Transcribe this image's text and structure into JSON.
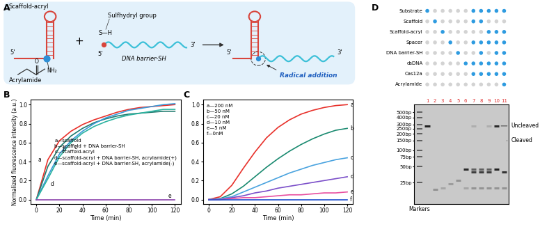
{
  "diagram": {
    "panel": "A",
    "scaffold_label": "Scaffold-acryl",
    "acrylamide_label": "Acrylamide",
    "carbonyl": "O",
    "amine": "NH₂",
    "plus": "+",
    "thiol_label": "Sulfhydryl group",
    "thiol": "S—H",
    "barrier_label": "DNA barrier-SH",
    "five_prime": "5'",
    "three_prime": "3'",
    "reaction_label": "Radical addition"
  },
  "chart_data": [
    {
      "panel": "B",
      "type": "line",
      "x": [
        0,
        10,
        20,
        30,
        40,
        50,
        60,
        70,
        80,
        90,
        100,
        110,
        120
      ],
      "xlim": [
        -5,
        125
      ],
      "xticks": [
        0,
        20,
        40,
        60,
        80,
        100,
        120
      ],
      "ylim": [
        -0.05,
        1.05
      ],
      "yticks": [
        {
          "value": 0,
          "label": "0.0"
        },
        0.2,
        0.4,
        0.6,
        0.8,
        {
          "value": 1,
          "label": "1.0"
        }
      ],
      "x_label": "Time (min)",
      "y_label": "Normalized fluorescence intensity (a.u.)",
      "legend": "center right",
      "series": [
        {
          "name": "a—scaffold",
          "color": "#e8302a",
          "values": [
            0,
            0.42,
            0.62,
            0.72,
            0.79,
            0.84,
            0.88,
            0.92,
            0.95,
            0.97,
            0.98,
            0.99,
            1.0
          ]
        },
        {
          "name": "b—scaffold + DNA barrier-SH",
          "color": "#1f7a6e",
          "values": [
            0,
            0.35,
            0.55,
            0.67,
            0.75,
            0.81,
            0.85,
            0.88,
            0.9,
            0.91,
            0.92,
            0.93,
            0.93
          ]
        },
        {
          "name": "c—scaffold-acryl",
          "color": "#3a9ad9",
          "values": [
            0,
            0.25,
            0.48,
            0.62,
            0.72,
            0.8,
            0.86,
            0.9,
            0.94,
            0.96,
            0.98,
            1.0,
            1.01
          ]
        },
        {
          "name": "d—scaffold-acryl + DNA barrier-SH, acrylamide(+)",
          "color": "#2bb3a0",
          "values": [
            0,
            0.22,
            0.45,
            0.6,
            0.7,
            0.77,
            0.82,
            0.86,
            0.89,
            0.91,
            0.93,
            0.95,
            0.95
          ]
        },
        {
          "name": "e—scaffold-acryl + DNA barrier-SH, acrylamide(-)",
          "color": "#8e44ad",
          "values": [
            0,
            0,
            0,
            0,
            0,
            0,
            0,
            0,
            0,
            0,
            0,
            0,
            0
          ]
        }
      ]
    },
    {
      "panel": "C",
      "type": "line",
      "x": [
        0,
        10,
        20,
        30,
        40,
        50,
        60,
        70,
        80,
        90,
        100,
        110,
        120
      ],
      "xlim": [
        -5,
        125
      ],
      "xticks": [
        0,
        20,
        40,
        60,
        80,
        100,
        120
      ],
      "ylim": [
        -0.05,
        1.05
      ],
      "yticks": [
        {
          "value": 0,
          "label": "0.0"
        },
        0.2,
        0.4,
        0.6,
        0.8,
        {
          "value": 1,
          "label": "1.0"
        }
      ],
      "x_label": "Time (min)",
      "legend": "upper left",
      "series": [
        {
          "name": "a—200 nM",
          "color": "#e8302a",
          "values": [
            0,
            0.03,
            0.15,
            0.33,
            0.5,
            0.65,
            0.76,
            0.84,
            0.9,
            0.94,
            0.97,
            0.99,
            1.0
          ]
        },
        {
          "name": "b—50 nM",
          "color": "#1a8a70",
          "values": [
            0,
            0.01,
            0.06,
            0.14,
            0.24,
            0.34,
            0.43,
            0.51,
            0.58,
            0.64,
            0.69,
            0.73,
            0.75
          ]
        },
        {
          "name": "c—20 nM",
          "color": "#4aa3df",
          "values": [
            0,
            0.01,
            0.03,
            0.08,
            0.13,
            0.18,
            0.23,
            0.28,
            0.32,
            0.36,
            0.39,
            0.42,
            0.44
          ]
        },
        {
          "name": "d—10 nM",
          "color": "#7b4fc9",
          "values": [
            0,
            0,
            0.02,
            0.04,
            0.07,
            0.09,
            0.12,
            0.14,
            0.16,
            0.18,
            0.2,
            0.22,
            0.24
          ]
        },
        {
          "name": "e—5 nM",
          "color": "#e84fa0",
          "values": [
            0,
            0,
            0.01,
            0.02,
            0.02,
            0.03,
            0.04,
            0.05,
            0.05,
            0.06,
            0.07,
            0.07,
            0.08
          ]
        },
        {
          "name": "f—0nM",
          "color": "#2050d0",
          "values": [
            0,
            0,
            0,
            0,
            0,
            0,
            0,
            0,
            0,
            0,
            0,
            0,
            0
          ]
        }
      ]
    }
  ],
  "gel": {
    "panel": "D",
    "markers_label": "Markers",
    "log": "y",
    "ylim": [
      10,
      700
    ],
    "yticks": [
      {
        "value": 500,
        "label": "500bp"
      },
      {
        "value": 400,
        "label": "400bp"
      },
      {
        "value": 300,
        "label": "300bp"
      },
      {
        "value": 250,
        "label": "250bp"
      },
      {
        "value": 200,
        "label": "200bp"
      },
      {
        "value": 150,
        "label": "150bp"
      },
      {
        "value": 100,
        "label": "100bp"
      },
      {
        "value": 75,
        "label": "75bp"
      },
      {
        "value": 50,
        "label": "50bp"
      },
      {
        "value": 25,
        "label": "25bp"
      }
    ],
    "lanes": [
      {
        "number": 1,
        "bands": [
          [
            280,
            0.95
          ]
        ]
      },
      {
        "number": 2,
        "bands": [
          [
            19,
            0.3
          ]
        ]
      },
      {
        "number": 3,
        "bands": [
          [
            20,
            0.2
          ]
        ]
      },
      {
        "number": 4,
        "bands": [
          [
            24,
            0.25
          ]
        ]
      },
      {
        "number": 5,
        "bands": [
          [
            28,
            0.3
          ]
        ]
      },
      {
        "number": 6,
        "bands": [
          [
            45,
            0.9
          ],
          [
            20,
            0.2
          ]
        ]
      },
      {
        "number": 7,
        "bands": [
          [
            40,
            0.8
          ],
          [
            45,
            0.6
          ],
          [
            20,
            0.3
          ],
          [
            280,
            0.15
          ]
        ]
      },
      {
        "number": 8,
        "bands": [
          [
            40,
            0.8
          ],
          [
            45,
            0.6
          ],
          [
            20,
            0.3
          ]
        ]
      },
      {
        "number": 9,
        "bands": [
          [
            40,
            0.8
          ],
          [
            45,
            0.6
          ],
          [
            20,
            0.3
          ],
          [
            280,
            0.15
          ]
        ]
      },
      {
        "number": 10,
        "bands": [
          [
            280,
            0.9
          ],
          [
            45,
            0.95
          ],
          [
            20,
            0.3
          ]
        ]
      },
      {
        "number": 11,
        "bands": [
          [
            40,
            0.85
          ],
          [
            20,
            0.3
          ]
        ]
      }
    ],
    "components": [
      {
        "name": "Substrate",
        "lanes": [
          1,
          7,
          8,
          9,
          10,
          11
        ]
      },
      {
        "name": "Scaffold",
        "lanes": [
          2,
          7,
          8
        ]
      },
      {
        "name": "Scaffold-acryl",
        "lanes": [
          3,
          9,
          10,
          11
        ]
      },
      {
        "name": "Spacer",
        "lanes": [
          4,
          7,
          8,
          9,
          10,
          11
        ]
      },
      {
        "name": "DNA barrier-SH",
        "lanes": [
          5,
          8,
          10,
          11
        ]
      },
      {
        "name": "dsDNA",
        "lanes": [
          6,
          7,
          8,
          9,
          10,
          11
        ]
      },
      {
        "name": "Cas12a",
        "lanes": [
          7,
          8,
          9,
          10,
          11
        ]
      },
      {
        "name": "Acrylamide",
        "lanes": [
          11
        ]
      }
    ],
    "annotations": [
      {
        "text": "Uncleaved",
        "lane": 10,
        "bp": 280
      },
      {
        "text": "Cleaved",
        "lane": 11,
        "bp": 150
      }
    ]
  }
}
